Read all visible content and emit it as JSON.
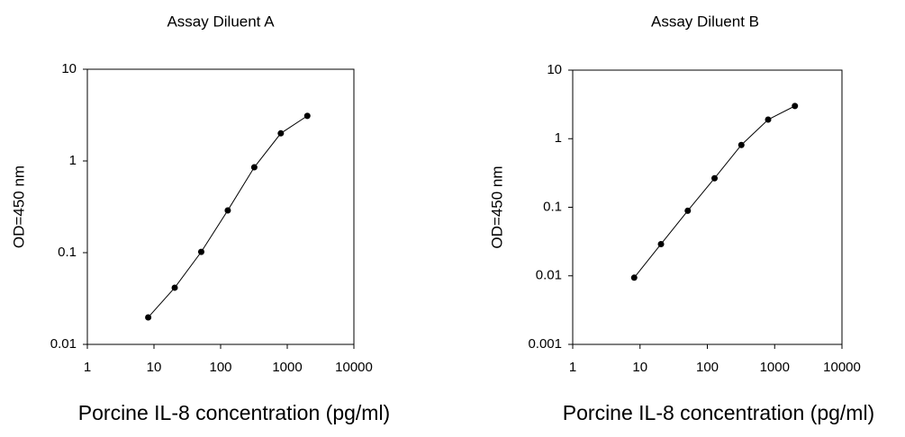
{
  "chart_data": [
    {
      "type": "line",
      "title": "Assay Diluent A",
      "x_label": "Porcine IL-8 concentration (pg/ml)",
      "y_label": "OD=450 nm",
      "x": [
        8.192,
        20.48,
        51.2,
        128,
        320,
        800,
        2000
      ],
      "values": [
        0.0197,
        0.0415,
        0.102,
        0.289,
        0.853,
        2.0,
        3.1
      ],
      "color": "#000000",
      "xscale": "log",
      "yscale": "log",
      "xlim": [
        1,
        10000
      ],
      "xticks": [
        1,
        10,
        100,
        1000,
        10000
      ],
      "ylim": [
        0.01,
        10
      ],
      "yticks": [
        0.01,
        0.1,
        1,
        10
      ]
    },
    {
      "type": "line",
      "title": "Assay Diluent B",
      "x_label": "Porcine IL-8 concentration (pg/ml)",
      "y_label": "OD=450 nm",
      "x": [
        8.192,
        20.48,
        51.2,
        128,
        320,
        800,
        2000
      ],
      "values": [
        0.0094,
        0.029,
        0.089,
        0.265,
        0.81,
        1.9,
        3.0
      ],
      "color": "#000000",
      "xscale": "log",
      "yscale": "log",
      "xlim": [
        1,
        10000
      ],
      "xticks": [
        1,
        10,
        100,
        1000,
        10000
      ],
      "ylim": [
        0.001,
        10
      ],
      "yticks": [
        0.001,
        0.01,
        0.1,
        1,
        10
      ]
    }
  ]
}
